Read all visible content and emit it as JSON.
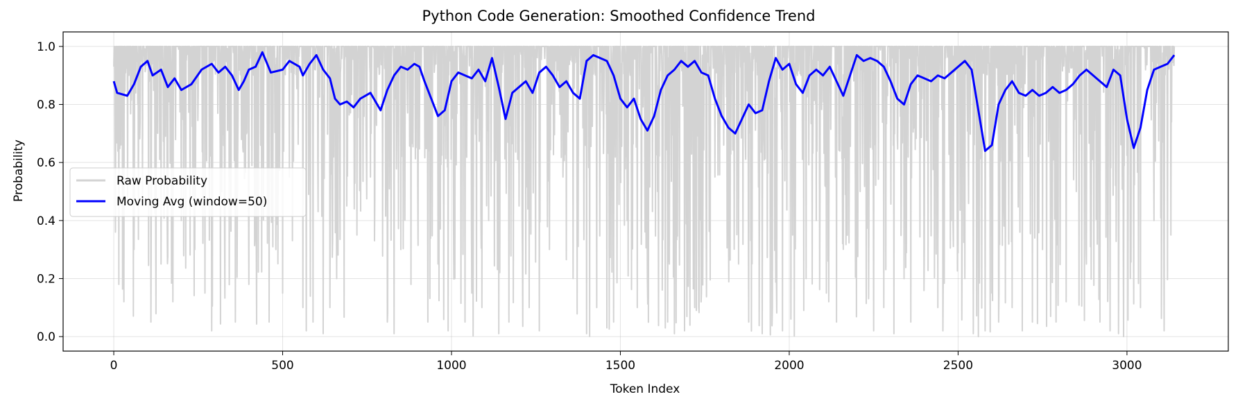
{
  "chart_data": {
    "type": "line",
    "title": "Python Code Generation: Smoothed Confidence Trend",
    "xlabel": "Token Index",
    "ylabel": "Probability",
    "xlim": [
      -150,
      3300
    ],
    "ylim": [
      -0.05,
      1.05
    ],
    "x_ticks": [
      0,
      500,
      1000,
      1500,
      2000,
      2500,
      3000
    ],
    "x_tick_labels": [
      "0",
      "500",
      "1000",
      "1500",
      "2000",
      "2500",
      "3000"
    ],
    "y_ticks": [
      0.0,
      0.2,
      0.4,
      0.6,
      0.8,
      1.0
    ],
    "y_tick_labels": [
      "0.0",
      "0.2",
      "0.4",
      "0.6",
      "0.8",
      "1.0"
    ],
    "grid": true,
    "legend_position": "center-left",
    "series": [
      {
        "name": "Raw Probability",
        "color": "#d3d3d3",
        "x_range": [
          0,
          3140
        ],
        "description_values": "dense noisy signal mostly near 1.0 with frequent dips toward 0",
        "low_dips": [
          [
            5,
            0.36
          ],
          [
            15,
            0.18
          ],
          [
            30,
            0.12
          ],
          [
            60,
            0.3
          ],
          [
            85,
            0.45
          ],
          [
            110,
            0.05
          ],
          [
            140,
            0.25
          ],
          [
            175,
            0.12
          ],
          [
            200,
            0.4
          ],
          [
            240,
            0.3
          ],
          [
            270,
            0.15
          ],
          [
            290,
            0.02
          ],
          [
            320,
            0.5
          ],
          [
            360,
            0.05
          ],
          [
            400,
            0.18
          ],
          [
            460,
            0.05
          ],
          [
            480,
            0.3
          ],
          [
            500,
            0.15
          ],
          [
            520,
            0.55
          ],
          [
            560,
            0.1
          ],
          [
            570,
            0.02
          ],
          [
            590,
            0.05
          ],
          [
            620,
            0.01
          ],
          [
            640,
            0.1
          ],
          [
            660,
            0.2
          ],
          [
            690,
            0.45
          ],
          [
            720,
            0.35
          ],
          [
            760,
            0.55
          ],
          [
            810,
            0.05
          ],
          [
            830,
            0.01
          ],
          [
            850,
            0.3
          ],
          [
            880,
            0.18
          ],
          [
            900,
            0.5
          ],
          [
            930,
            0.05
          ],
          [
            960,
            0.25
          ],
          [
            990,
            0.02
          ],
          [
            1010,
            0.2
          ],
          [
            1040,
            0.05
          ],
          [
            1060,
            0.15
          ],
          [
            1090,
            0.1
          ],
          [
            1110,
            0.4
          ],
          [
            1140,
            0.01
          ],
          [
            1170,
            0.05
          ],
          [
            1200,
            0.45
          ],
          [
            1230,
            0.1
          ],
          [
            1260,
            0.02
          ],
          [
            1290,
            0.3
          ],
          [
            1330,
            0.55
          ],
          [
            1360,
            0.2
          ],
          [
            1400,
            0.01
          ],
          [
            1430,
            0.1
          ],
          [
            1460,
            0.03
          ],
          [
            1480,
            0.05
          ],
          [
            1520,
            0.4
          ],
          [
            1550,
            0.1
          ],
          [
            1580,
            0.2
          ],
          [
            1610,
            0.5
          ],
          [
            1640,
            0.05
          ],
          [
            1660,
            0.01
          ],
          [
            1690,
            0.02
          ],
          [
            1720,
            0.1
          ],
          [
            1740,
            0.15
          ],
          [
            1780,
            0.55
          ],
          [
            1820,
            0.4
          ],
          [
            1850,
            0.25
          ],
          [
            1880,
            0.05
          ],
          [
            1920,
            0.01
          ],
          [
            1950,
            0.1
          ],
          [
            1980,
            0.02
          ],
          [
            2010,
            0.35
          ],
          [
            2050,
            0.2
          ],
          [
            2080,
            0.4
          ],
          [
            2110,
            0.15
          ],
          [
            2140,
            0.05
          ],
          [
            2170,
            0.45
          ],
          [
            2210,
            0.5
          ],
          [
            2250,
            0.02
          ],
          [
            2280,
            0.1
          ],
          [
            2310,
            0.01
          ],
          [
            2340,
            0.2
          ],
          [
            2360,
            0.05
          ],
          [
            2400,
            0.3
          ],
          [
            2440,
            0.1
          ],
          [
            2480,
            0.4
          ],
          [
            2520,
            0.2
          ],
          [
            2545,
            0.01
          ],
          [
            2560,
            0.0
          ],
          [
            2580,
            0.02
          ],
          [
            2600,
            0.15
          ],
          [
            2620,
            0.05
          ],
          [
            2660,
            0.1
          ],
          [
            2690,
            0.02
          ],
          [
            2720,
            0.05
          ],
          [
            2750,
            0.3
          ],
          [
            2790,
            0.05
          ],
          [
            2820,
            0.12
          ],
          [
            2850,
            0.5
          ],
          [
            2880,
            0.25
          ],
          [
            2920,
            0.05
          ],
          [
            2950,
            0.02
          ],
          [
            2975,
            0.01
          ],
          [
            2990,
            0.0
          ],
          [
            3010,
            0.2
          ],
          [
            3040,
            0.1
          ],
          [
            3080,
            0.4
          ],
          [
            3110,
            0.02
          ],
          [
            3130,
            0.35
          ]
        ]
      },
      {
        "name": "Moving Avg (window=50)",
        "color": "#0000ff",
        "points": [
          [
            0,
            0.88
          ],
          [
            10,
            0.84
          ],
          [
            40,
            0.83
          ],
          [
            60,
            0.87
          ],
          [
            80,
            0.93
          ],
          [
            100,
            0.95
          ],
          [
            115,
            0.9
          ],
          [
            140,
            0.92
          ],
          [
            160,
            0.86
          ],
          [
            180,
            0.89
          ],
          [
            200,
            0.85
          ],
          [
            230,
            0.87
          ],
          [
            260,
            0.92
          ],
          [
            290,
            0.94
          ],
          [
            310,
            0.91
          ],
          [
            330,
            0.93
          ],
          [
            350,
            0.9
          ],
          [
            370,
            0.85
          ],
          [
            385,
            0.88
          ],
          [
            400,
            0.92
          ],
          [
            420,
            0.93
          ],
          [
            440,
            0.98
          ],
          [
            465,
            0.91
          ],
          [
            500,
            0.92
          ],
          [
            520,
            0.95
          ],
          [
            550,
            0.93
          ],
          [
            560,
            0.9
          ],
          [
            580,
            0.94
          ],
          [
            600,
            0.97
          ],
          [
            620,
            0.92
          ],
          [
            640,
            0.89
          ],
          [
            655,
            0.82
          ],
          [
            670,
            0.8
          ],
          [
            690,
            0.81
          ],
          [
            710,
            0.79
          ],
          [
            730,
            0.82
          ],
          [
            760,
            0.84
          ],
          [
            790,
            0.78
          ],
          [
            810,
            0.85
          ],
          [
            830,
            0.9
          ],
          [
            850,
            0.93
          ],
          [
            870,
            0.92
          ],
          [
            890,
            0.94
          ],
          [
            905,
            0.93
          ],
          [
            920,
            0.88
          ],
          [
            940,
            0.82
          ],
          [
            960,
            0.76
          ],
          [
            980,
            0.78
          ],
          [
            1000,
            0.88
          ],
          [
            1020,
            0.91
          ],
          [
            1040,
            0.9
          ],
          [
            1060,
            0.89
          ],
          [
            1080,
            0.92
          ],
          [
            1100,
            0.88
          ],
          [
            1120,
            0.96
          ],
          [
            1140,
            0.86
          ],
          [
            1160,
            0.75
          ],
          [
            1180,
            0.84
          ],
          [
            1200,
            0.86
          ],
          [
            1220,
            0.88
          ],
          [
            1240,
            0.84
          ],
          [
            1260,
            0.91
          ],
          [
            1280,
            0.93
          ],
          [
            1300,
            0.9
          ],
          [
            1320,
            0.86
          ],
          [
            1340,
            0.88
          ],
          [
            1360,
            0.84
          ],
          [
            1380,
            0.82
          ],
          [
            1400,
            0.95
          ],
          [
            1420,
            0.97
          ],
          [
            1440,
            0.96
          ],
          [
            1460,
            0.95
          ],
          [
            1480,
            0.9
          ],
          [
            1500,
            0.82
          ],
          [
            1520,
            0.79
          ],
          [
            1540,
            0.82
          ],
          [
            1560,
            0.75
          ],
          [
            1580,
            0.71
          ],
          [
            1600,
            0.76
          ],
          [
            1620,
            0.85
          ],
          [
            1640,
            0.9
          ],
          [
            1660,
            0.92
          ],
          [
            1680,
            0.95
          ],
          [
            1700,
            0.93
          ],
          [
            1720,
            0.95
          ],
          [
            1740,
            0.91
          ],
          [
            1760,
            0.9
          ],
          [
            1780,
            0.82
          ],
          [
            1800,
            0.76
          ],
          [
            1820,
            0.72
          ],
          [
            1840,
            0.7
          ],
          [
            1860,
            0.75
          ],
          [
            1880,
            0.8
          ],
          [
            1900,
            0.77
          ],
          [
            1920,
            0.78
          ],
          [
            1940,
            0.88
          ],
          [
            1960,
            0.96
          ],
          [
            1980,
            0.92
          ],
          [
            2000,
            0.94
          ],
          [
            2020,
            0.87
          ],
          [
            2040,
            0.84
          ],
          [
            2060,
            0.9
          ],
          [
            2080,
            0.92
          ],
          [
            2100,
            0.9
          ],
          [
            2120,
            0.93
          ],
          [
            2140,
            0.88
          ],
          [
            2160,
            0.83
          ],
          [
            2180,
            0.9
          ],
          [
            2200,
            0.97
          ],
          [
            2220,
            0.95
          ],
          [
            2240,
            0.96
          ],
          [
            2260,
            0.95
          ],
          [
            2280,
            0.93
          ],
          [
            2300,
            0.88
          ],
          [
            2320,
            0.82
          ],
          [
            2340,
            0.8
          ],
          [
            2360,
            0.87
          ],
          [
            2380,
            0.9
          ],
          [
            2400,
            0.89
          ],
          [
            2420,
            0.88
          ],
          [
            2440,
            0.9
          ],
          [
            2460,
            0.89
          ],
          [
            2480,
            0.91
          ],
          [
            2500,
            0.93
          ],
          [
            2520,
            0.95
          ],
          [
            2540,
            0.92
          ],
          [
            2560,
            0.78
          ],
          [
            2580,
            0.64
          ],
          [
            2600,
            0.66
          ],
          [
            2620,
            0.8
          ],
          [
            2640,
            0.85
          ],
          [
            2660,
            0.88
          ],
          [
            2680,
            0.84
          ],
          [
            2700,
            0.83
          ],
          [
            2720,
            0.85
          ],
          [
            2740,
            0.83
          ],
          [
            2760,
            0.84
          ],
          [
            2780,
            0.86
          ],
          [
            2800,
            0.84
          ],
          [
            2820,
            0.85
          ],
          [
            2840,
            0.87
          ],
          [
            2860,
            0.9
          ],
          [
            2880,
            0.92
          ],
          [
            2900,
            0.9
          ],
          [
            2920,
            0.88
          ],
          [
            2940,
            0.86
          ],
          [
            2960,
            0.92
          ],
          [
            2980,
            0.9
          ],
          [
            3000,
            0.75
          ],
          [
            3020,
            0.65
          ],
          [
            3040,
            0.72
          ],
          [
            3060,
            0.85
          ],
          [
            3080,
            0.92
          ],
          [
            3100,
            0.93
          ],
          [
            3120,
            0.94
          ],
          [
            3140,
            0.97
          ]
        ]
      }
    ]
  }
}
